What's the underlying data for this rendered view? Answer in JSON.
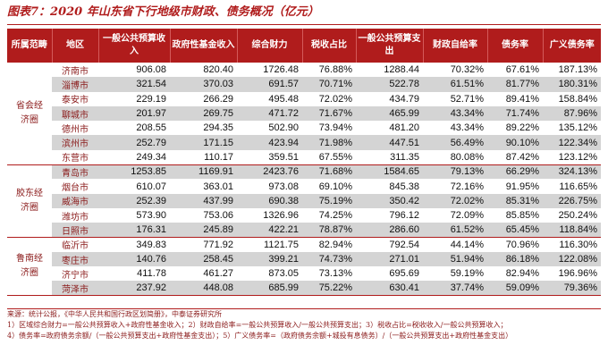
{
  "title": "图表7：2020 年山东省下行地级市财政、债务概况（亿元）",
  "headers": [
    "所属范畴",
    "地区",
    "一般公共预算收入",
    "政府性基金收入",
    "综合财力",
    "税收占比",
    "一般公共预算支出",
    "财政自给率",
    "债务率",
    "广义债务率"
  ],
  "groups": [
    {
      "region": "省会经济圈",
      "rows": [
        {
          "city": "济南市",
          "values": [
            "906.08",
            "820.40",
            "1726.48",
            "76.88%",
            "1288.44",
            "70.32%",
            "67.61%",
            "187.13%"
          ]
        },
        {
          "city": "淄博市",
          "values": [
            "321.54",
            "370.03",
            "691.57",
            "70.71%",
            "522.78",
            "61.51%",
            "81.77%",
            "180.31%"
          ]
        },
        {
          "city": "泰安市",
          "values": [
            "229.19",
            "266.29",
            "495.48",
            "72.02%",
            "434.79",
            "52.71%",
            "89.41%",
            "158.84%"
          ]
        },
        {
          "city": "聊城市",
          "values": [
            "201.97",
            "269.75",
            "471.72",
            "71.67%",
            "465.99",
            "43.34%",
            "71.74%",
            "87.96%"
          ]
        },
        {
          "city": "德州市",
          "values": [
            "208.55",
            "294.35",
            "502.90",
            "73.94%",
            "481.20",
            "43.34%",
            "89.22%",
            "135.12%"
          ]
        },
        {
          "city": "滨州市",
          "values": [
            "252.79",
            "171.15",
            "423.94",
            "71.98%",
            "447.51",
            "56.49%",
            "90.10%",
            "122.34%"
          ]
        },
        {
          "city": "东营市",
          "values": [
            "249.34",
            "110.17",
            "359.51",
            "67.55%",
            "311.35",
            "80.08%",
            "87.42%",
            "123.12%"
          ]
        }
      ]
    },
    {
      "region": "胶东经济圈",
      "rows": [
        {
          "city": "青岛市",
          "values": [
            "1253.85",
            "1169.91",
            "2423.76",
            "71.68%",
            "1584.65",
            "79.13%",
            "66.29%",
            "324.13%"
          ]
        },
        {
          "city": "烟台市",
          "values": [
            "610.07",
            "363.01",
            "973.08",
            "69.10%",
            "845.38",
            "72.16%",
            "91.95%",
            "116.65%"
          ]
        },
        {
          "city": "威海市",
          "values": [
            "252.39",
            "437.99",
            "690.38",
            "75.19%",
            "350.42",
            "72.02%",
            "85.31%",
            "226.75%"
          ]
        },
        {
          "city": "潍坊市",
          "values": [
            "573.90",
            "753.06",
            "1326.96",
            "74.25%",
            "796.12",
            "72.09%",
            "85.85%",
            "250.24%"
          ]
        },
        {
          "city": "日照市",
          "values": [
            "176.31",
            "245.89",
            "422.21",
            "78.87%",
            "286.60",
            "61.52%",
            "65.45%",
            "118.84%"
          ]
        }
      ]
    },
    {
      "region": "鲁南经济圈",
      "rows": [
        {
          "city": "临沂市",
          "values": [
            "349.83",
            "771.92",
            "1121.75",
            "82.94%",
            "792.54",
            "44.14%",
            "70.96%",
            "116.30%"
          ]
        },
        {
          "city": "枣庄市",
          "values": [
            "140.76",
            "258.45",
            "399.21",
            "74.73%",
            "271.01",
            "51.94%",
            "86.18%",
            "122.08%"
          ]
        },
        {
          "city": "济宁市",
          "values": [
            "411.78",
            "461.27",
            "873.05",
            "73.13%",
            "695.69",
            "59.19%",
            "82.94%",
            "196.96%"
          ]
        },
        {
          "city": "菏泽市",
          "values": [
            "237.92",
            "448.08",
            "685.99",
            "75.22%",
            "630.41",
            "37.74%",
            "59.09%",
            "79.36%"
          ]
        }
      ]
    }
  ],
  "notes": {
    "source": "来源：统计公报，《中华人民共和国行政区划简册》，中泰证券研究所",
    "note1": "1）区域综合财力=一般公共预算收入+政府性基金收入；2）财政自给率=一般公共预算收入/一般公共预算支出；3）税收占比=税收收入/一般公共预算收入；",
    "note2": "4）债务率=政府债务余额/（一般公共预算支出+政府性基金支出）；5）广义债务率=（政府债务余额+城投有息债务）/（一般公共预算支出+政府性基金支出）"
  }
}
